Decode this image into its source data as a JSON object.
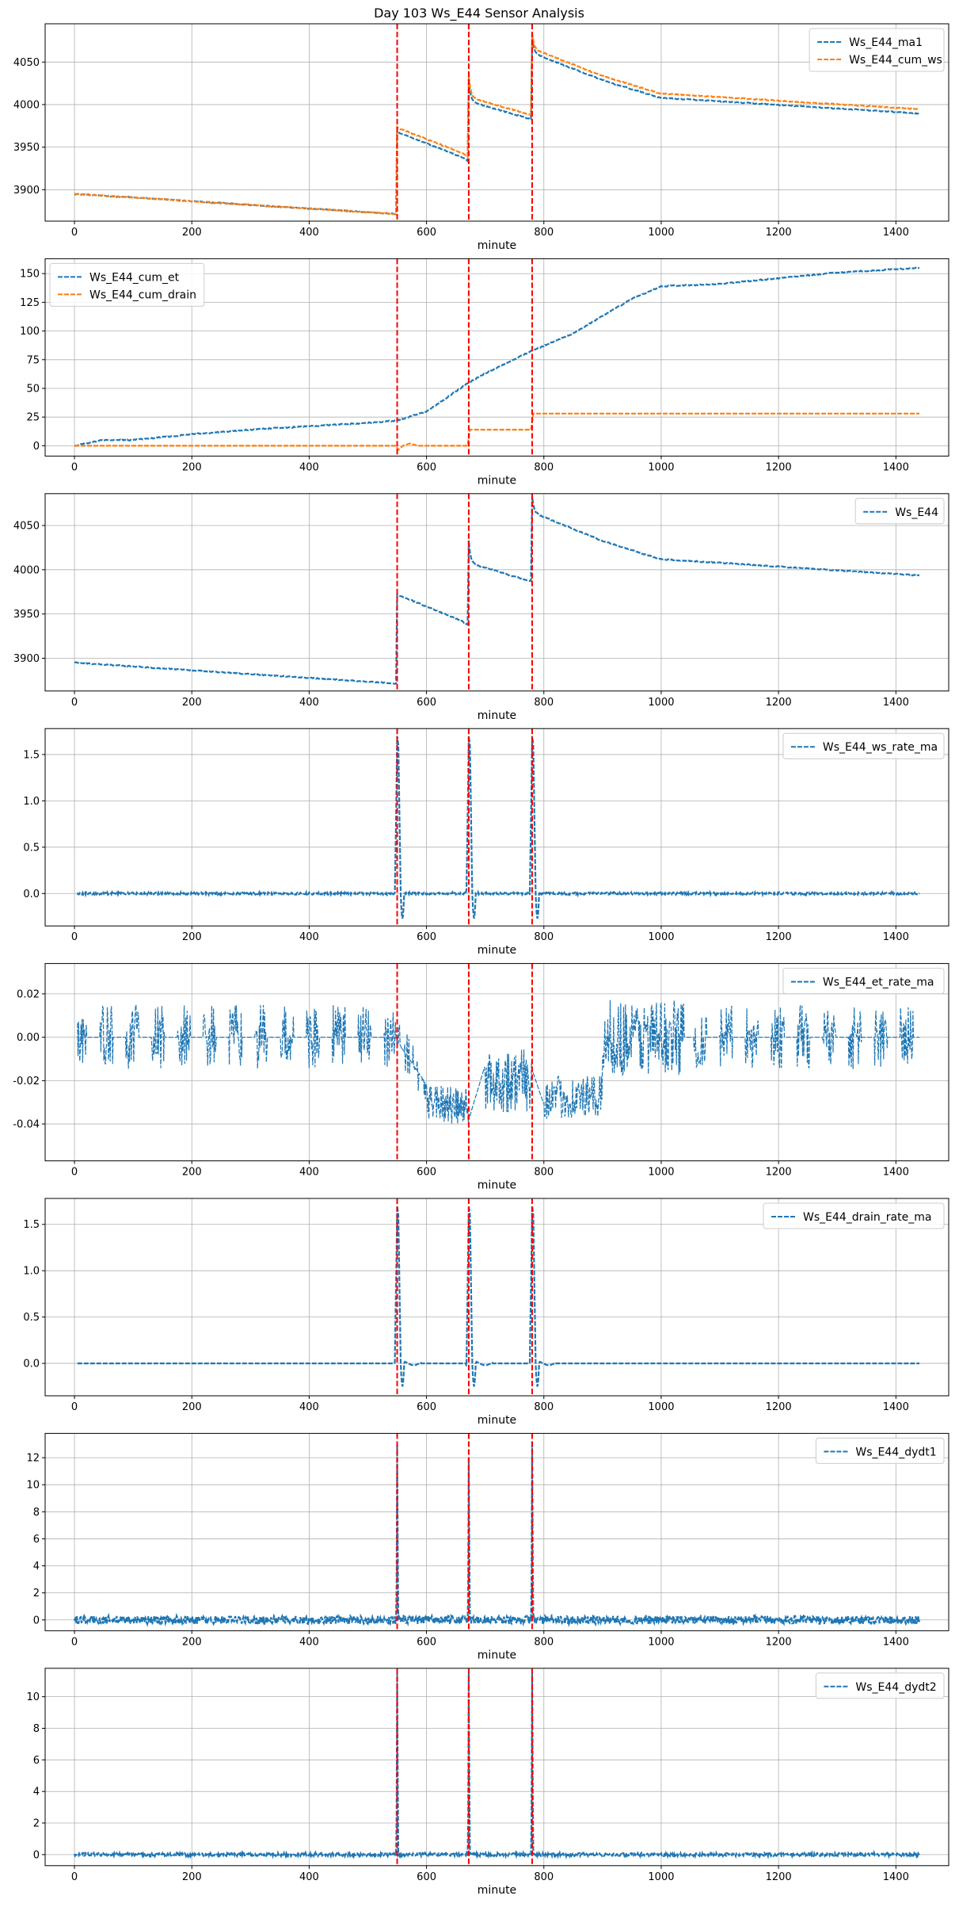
{
  "title": "Day 103 Ws_E44 Sensor Analysis",
  "colors": {
    "series1": "#1f77b4",
    "series2": "#ff7f0e",
    "event": "#ff0000",
    "grid": "#b0b0b0"
  },
  "chart_data": [
    {
      "type": "line",
      "xlabel": "minute",
      "xlim": [
        -50,
        1490
      ],
      "ylim": [
        3863,
        4095
      ],
      "xticks": [
        0,
        200,
        400,
        600,
        800,
        1000,
        1200,
        1400
      ],
      "yticks": [
        3900,
        3950,
        4000,
        4050
      ],
      "legend_position": "top-right",
      "event_lines": [
        550,
        672,
        780
      ],
      "series": [
        {
          "name": "Ws_E44_ma1",
          "color": "#1f77b4",
          "kind": "ws",
          "offset": -4
        },
        {
          "name": "Ws_E44_cum_ws",
          "color": "#ff7f0e",
          "kind": "ws",
          "offset": 1
        }
      ]
    },
    {
      "type": "line",
      "xlabel": "minute",
      "xlim": [
        -50,
        1490
      ],
      "ylim": [
        -9,
        163
      ],
      "xticks": [
        0,
        200,
        400,
        600,
        800,
        1000,
        1200,
        1400
      ],
      "yticks": [
        0,
        25,
        50,
        75,
        100,
        125,
        150
      ],
      "legend_position": "top-left",
      "event_lines": [
        550,
        672,
        780
      ],
      "series": [
        {
          "name": "Ws_E44_cum_et",
          "color": "#1f77b4",
          "kind": "cum_et",
          "points": [
            [
              0,
              0
            ],
            [
              50,
              5
            ],
            [
              100,
              5
            ],
            [
              200,
              10
            ],
            [
              300,
              14
            ],
            [
              400,
              17
            ],
            [
              500,
              20
            ],
            [
              550,
              22
            ],
            [
              600,
              30
            ],
            [
              672,
              55
            ],
            [
              700,
              63
            ],
            [
              780,
              83
            ],
            [
              800,
              87
            ],
            [
              850,
              98
            ],
            [
              900,
              113
            ],
            [
              950,
              128
            ],
            [
              1000,
              139
            ],
            [
              1100,
              141
            ],
            [
              1200,
              146
            ],
            [
              1300,
              151
            ],
            [
              1440,
              155
            ]
          ]
        },
        {
          "name": "Ws_E44_cum_drain",
          "color": "#ff7f0e",
          "kind": "cum_drain",
          "points": [
            [
              0,
              0
            ],
            [
              549,
              0
            ],
            [
              551,
              -4
            ],
            [
              560,
              0
            ],
            [
              572,
              2
            ],
            [
              585,
              0
            ],
            [
              671,
              0
            ],
            [
              673,
              14
            ],
            [
              779,
              14
            ],
            [
              781,
              28
            ],
            [
              1440,
              28
            ]
          ]
        }
      ]
    },
    {
      "type": "line",
      "xlabel": "minute",
      "xlim": [
        -50,
        1490
      ],
      "ylim": [
        3863,
        4086
      ],
      "xticks": [
        0,
        200,
        400,
        600,
        800,
        1000,
        1200,
        1400
      ],
      "yticks": [
        3900,
        3950,
        4000,
        4050
      ],
      "legend_position": "top-right",
      "event_lines": [
        550,
        672,
        780
      ],
      "series": [
        {
          "name": "Ws_E44",
          "color": "#1f77b4",
          "kind": "ws",
          "offset": 0
        }
      ]
    },
    {
      "type": "line",
      "xlabel": "minute",
      "xlim": [
        -50,
        1490
      ],
      "ylim": [
        -0.35,
        1.78
      ],
      "xticks": [
        0,
        200,
        400,
        600,
        800,
        1000,
        1200,
        1400
      ],
      "yticks": [
        0.0,
        0.5,
        1.0,
        1.5
      ],
      "ytick_decimals": 1,
      "legend_position": "top-right",
      "event_lines": [
        550,
        672,
        780
      ],
      "series": [
        {
          "name": "Ws_E44_ws_rate_ma",
          "color": "#1f77b4",
          "kind": "rate",
          "noise": 0.012,
          "min_dip": -0.27
        }
      ]
    },
    {
      "type": "line",
      "xlabel": "minute",
      "xlim": [
        -50,
        1490
      ],
      "ylim": [
        -0.057,
        0.034
      ],
      "xticks": [
        0,
        200,
        400,
        600,
        800,
        1000,
        1200,
        1400
      ],
      "yticks": [
        -0.04,
        -0.02,
        0.0,
        0.02
      ],
      "ytick_decimals": 2,
      "legend_position": "top-right",
      "event_lines": [
        550,
        672,
        780
      ],
      "series": [
        {
          "name": "Ws_E44_et_rate_ma",
          "color": "#1f77b4",
          "kind": "et_rate"
        }
      ]
    },
    {
      "type": "line",
      "xlabel": "minute",
      "xlim": [
        -50,
        1490
      ],
      "ylim": [
        -0.35,
        1.78
      ],
      "xticks": [
        0,
        200,
        400,
        600,
        800,
        1000,
        1200,
        1400
      ],
      "yticks": [
        0.0,
        0.5,
        1.0,
        1.5
      ],
      "ytick_decimals": 1,
      "legend_position": "top-right",
      "event_lines": [
        550,
        672,
        780
      ],
      "series": [
        {
          "name": "Ws_E44_drain_rate_ma",
          "color": "#1f77b4",
          "kind": "rate",
          "noise": 0.0,
          "min_dip": -0.25
        }
      ]
    },
    {
      "type": "line",
      "xlabel": "minute",
      "xlim": [
        -50,
        1490
      ],
      "ylim": [
        -0.8,
        13.8
      ],
      "xticks": [
        0,
        200,
        400,
        600,
        800,
        1000,
        1200,
        1400
      ],
      "yticks": [
        0,
        2,
        4,
        6,
        8,
        10,
        12
      ],
      "legend_position": "top-right",
      "event_lines": [
        550,
        672,
        780
      ],
      "series": [
        {
          "name": "Ws_E44_dydt1",
          "color": "#1f77b4",
          "kind": "dydt",
          "noise": 0.3,
          "peaks": [
            13.0,
            12.0,
            13.2
          ]
        }
      ]
    },
    {
      "type": "line",
      "xlabel": "minute",
      "xlim": [
        -50,
        1490
      ],
      "ylim": [
        -0.7,
        11.8
      ],
      "xticks": [
        0,
        200,
        400,
        600,
        800,
        1000,
        1200,
        1400
      ],
      "yticks": [
        0,
        2,
        4,
        6,
        8,
        10
      ],
      "legend_position": "top-right",
      "event_lines": [
        550,
        672,
        780
      ],
      "series": [
        {
          "name": "Ws_E44_dydt2",
          "color": "#1f77b4",
          "kind": "dydt",
          "noise": 0.1,
          "peaks": [
            11.5,
            11.5,
            11.5
          ]
        }
      ]
    }
  ]
}
